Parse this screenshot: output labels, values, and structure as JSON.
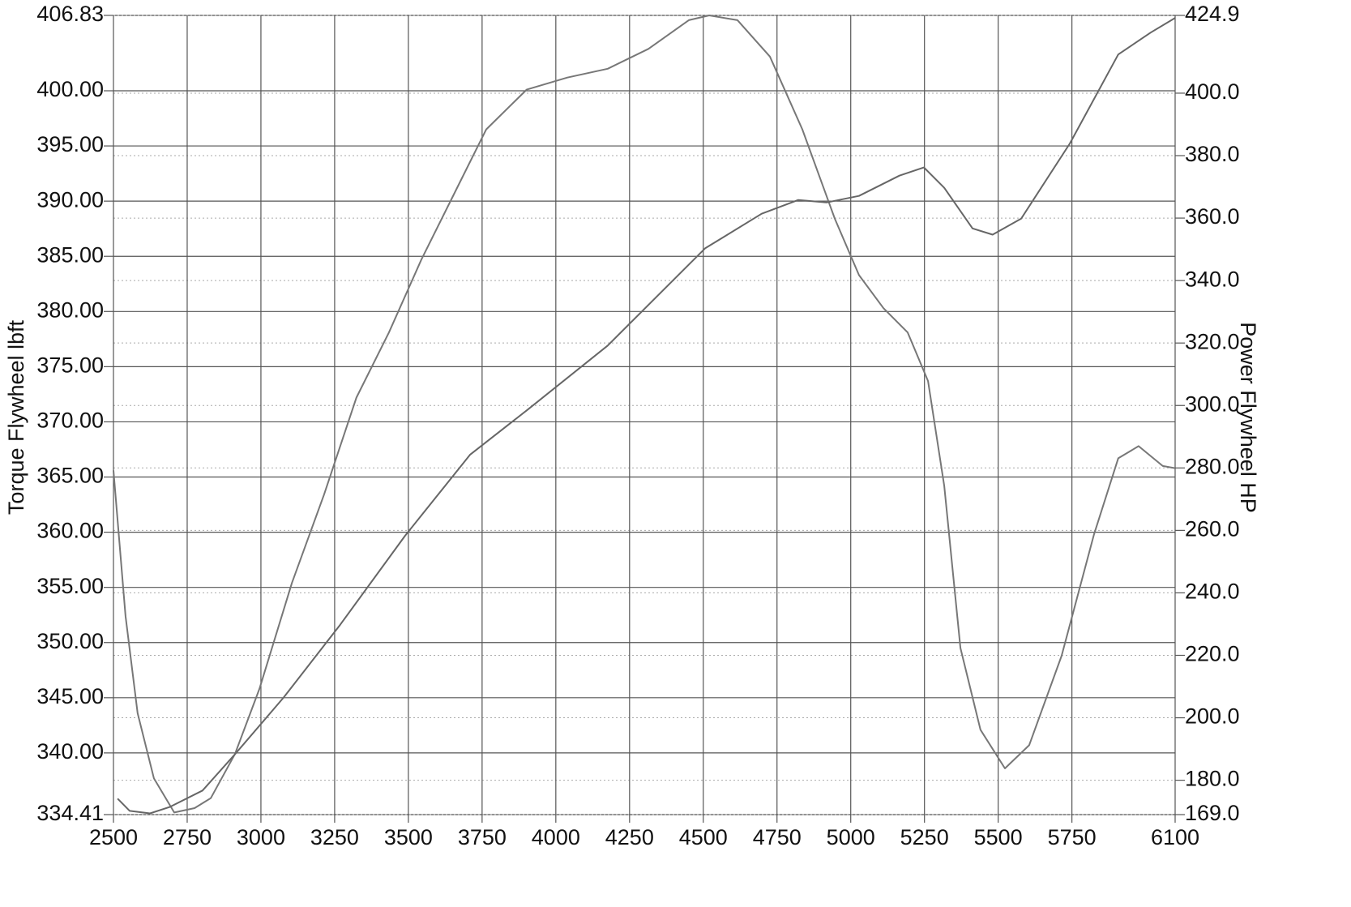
{
  "chart_data": {
    "type": "line",
    "y_label": "Torque Flywheel lbft",
    "y2_label": "Power Flywheel HP",
    "xlim": [
      2500,
      6100
    ],
    "xticks": [
      2500,
      2750,
      3000,
      3250,
      3500,
      3750,
      4000,
      4250,
      4500,
      4750,
      5000,
      5250,
      5500,
      5750,
      6100
    ],
    "ylim": [
      334.41,
      406.83
    ],
    "yticks": [
      334.41,
      {
        "value": 340,
        "label": "340.00"
      },
      {
        "value": 345,
        "label": "345.00"
      },
      {
        "value": 350,
        "label": "350.00"
      },
      {
        "value": 355,
        "label": "355.00"
      },
      {
        "value": 360,
        "label": "360.00"
      },
      {
        "value": 365,
        "label": "365.00"
      },
      {
        "value": 370,
        "label": "370.00"
      },
      {
        "value": 375,
        "label": "375.00"
      },
      {
        "value": 380,
        "label": "380.00"
      },
      {
        "value": 385,
        "label": "385.00"
      },
      {
        "value": 390,
        "label": "390.00"
      },
      {
        "value": 395,
        "label": "395.00"
      },
      {
        "value": 400,
        "label": "400.00"
      },
      406.83
    ],
    "y2lim": [
      169,
      424.9
    ],
    "y2ticks": [
      {
        "value": 169,
        "label": "169.0"
      },
      {
        "value": 180,
        "label": "180.0"
      },
      {
        "value": 200,
        "label": "200.0"
      },
      {
        "value": 220,
        "label": "220.0"
      },
      {
        "value": 240,
        "label": "240.0"
      },
      {
        "value": 260,
        "label": "260.0"
      },
      {
        "value": 280,
        "label": "280.0"
      },
      {
        "value": 300,
        "label": "300.0"
      },
      {
        "value": 320,
        "label": "320.0"
      },
      {
        "value": 340,
        "label": "340.0"
      },
      {
        "value": 360,
        "label": "360.0"
      },
      {
        "value": 380,
        "label": "380.0"
      },
      {
        "value": 400,
        "label": "400.0"
      },
      424.9
    ],
    "grid": true,
    "series": [
      {
        "name": "Torque",
        "color": "#777777",
        "x": [
          2500,
          2541,
          2582,
          2637,
          2706,
          2775,
          2830,
          2912,
          2995,
          3105,
          3214,
          3324,
          3434,
          3544,
          3654,
          3764,
          3901,
          4039,
          4176,
          4314,
          4451,
          4520,
          4616,
          4726,
          4836,
          4946,
          5028,
          5111,
          5193,
          5262,
          5317,
          5372,
          5440,
          5523,
          5605,
          5715,
          5825,
          5907,
          5976,
          6058,
          6100
        ],
        "values": [
          365.6,
          352.4,
          343.6,
          337.7,
          334.6,
          335.0,
          335.9,
          339.9,
          345.8,
          355.4,
          363.4,
          372.2,
          378.1,
          384.7,
          390.6,
          396.5,
          400.1,
          401.2,
          402.0,
          403.8,
          406.4,
          406.83,
          406.4,
          403.1,
          396.5,
          388.4,
          383.3,
          380.3,
          378.1,
          373.7,
          364.2,
          349.5,
          342.1,
          338.6,
          340.7,
          348.8,
          359.8,
          366.7,
          367.8,
          366.0,
          365.8
        ]
      },
      {
        "name": "Power",
        "color": "#666666",
        "axis": "y2",
        "x": [
          2514,
          2555,
          2624,
          2692,
          2802,
          2912,
          3077,
          3269,
          3489,
          3709,
          3901,
          4176,
          4506,
          4698,
          4822,
          4918,
          5028,
          5165,
          5248,
          5317,
          5413,
          5481,
          5578,
          5743,
          5907,
          6017,
          6100
        ],
        "values": [
          174.1,
          170.2,
          169.4,
          171.5,
          176.7,
          188.3,
          206.5,
          229.8,
          258.3,
          284.2,
          298.4,
          319.2,
          350.3,
          361.4,
          365.8,
          365.0,
          367.1,
          373.6,
          376.2,
          369.7,
          356.7,
          354.7,
          359.8,
          383.9,
          412.4,
          419.4,
          424.1
        ]
      }
    ]
  }
}
